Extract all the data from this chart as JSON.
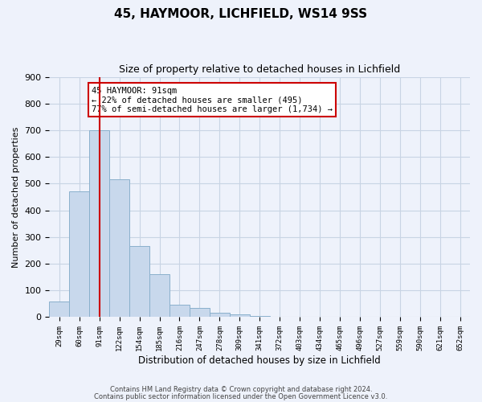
{
  "title": "45, HAYMOOR, LICHFIELD, WS14 9SS",
  "subtitle": "Size of property relative to detached houses in Lichfield",
  "xlabel": "Distribution of detached houses by size in Lichfield",
  "ylabel": "Number of detached properties",
  "footnote1": "Contains HM Land Registry data © Crown copyright and database right 2024.",
  "footnote2": "Contains public sector information licensed under the Open Government Licence v3.0.",
  "bar_labels": [
    "29sqm",
    "60sqm",
    "91sqm",
    "122sqm",
    "154sqm",
    "185sqm",
    "216sqm",
    "247sqm",
    "278sqm",
    "309sqm",
    "341sqm",
    "372sqm",
    "403sqm",
    "434sqm",
    "465sqm",
    "496sqm",
    "527sqm",
    "559sqm",
    "590sqm",
    "621sqm",
    "652sqm"
  ],
  "bar_values": [
    60,
    470,
    700,
    515,
    265,
    160,
    48,
    35,
    15,
    10,
    5,
    0,
    0,
    0,
    0,
    0,
    0,
    0,
    0,
    0,
    0
  ],
  "bar_color": "#c8d8ec",
  "bar_edge_color": "#8ab0cc",
  "red_line_index": 2,
  "annotation_title": "45 HAYMOOR: 91sqm",
  "annotation_line1": "← 22% of detached houses are smaller (495)",
  "annotation_line2": "77% of semi-detached houses are larger (1,734) →",
  "annotation_box_color": "#ffffff",
  "annotation_box_edgecolor": "#cc0000",
  "red_line_color": "#cc0000",
  "ylim": [
    0,
    900
  ],
  "yticks": [
    0,
    100,
    200,
    300,
    400,
    500,
    600,
    700,
    800,
    900
  ],
  "grid_color": "#c8d4e4",
  "background_color": "#eef2fb"
}
